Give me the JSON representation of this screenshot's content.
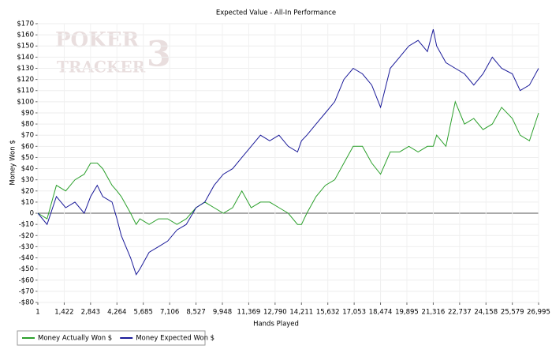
{
  "chart_data": {
    "type": "line",
    "title": "Expected Value - All-In Performance",
    "x_label": "Hands Played",
    "y_label": "Money Won $",
    "watermark": [
      "POKER",
      "TRACKER",
      "3"
    ],
    "grid": true,
    "legend": "bottom-left",
    "xlim": [
      1,
      26995
    ],
    "xticks": [
      1,
      {
        "value": 1422,
        "label": "1,422"
      },
      {
        "value": 2843,
        "label": "2,843"
      },
      {
        "value": 4264,
        "label": "4,264"
      },
      {
        "value": 5685,
        "label": "5,685"
      },
      {
        "value": 7106,
        "label": "7,106"
      },
      {
        "value": 8527,
        "label": "8,527"
      },
      {
        "value": 9948,
        "label": "9,948"
      },
      {
        "value": 11369,
        "label": "11,369"
      },
      {
        "value": 12790,
        "label": "12,790"
      },
      {
        "value": 14211,
        "label": "14,211"
      },
      {
        "value": 15632,
        "label": "15,632"
      },
      {
        "value": 17053,
        "label": "17,053"
      },
      {
        "value": 18474,
        "label": "18,474"
      },
      {
        "value": 19895,
        "label": "19,895"
      },
      {
        "value": 21316,
        "label": "21,316"
      },
      {
        "value": 22737,
        "label": "22,737"
      },
      {
        "value": 24158,
        "label": "24,158"
      },
      {
        "value": 25579,
        "label": "25,579"
      },
      {
        "value": 26995,
        "label": "26,995"
      }
    ],
    "ylim": [
      -80,
      170
    ],
    "yticks": [
      {
        "value": -80,
        "label": "-$80"
      },
      {
        "value": -70,
        "label": "-$70"
      },
      {
        "value": -60,
        "label": "-$60"
      },
      {
        "value": -50,
        "label": "-$50"
      },
      {
        "value": -40,
        "label": "-$40"
      },
      {
        "value": -30,
        "label": "-$30"
      },
      {
        "value": -20,
        "label": "-$20"
      },
      {
        "value": -10,
        "label": "-$10"
      },
      0,
      {
        "value": 10,
        "label": "$10"
      },
      {
        "value": 20,
        "label": "$20"
      },
      {
        "value": 30,
        "label": "$30"
      },
      {
        "value": 40,
        "label": "$40"
      },
      {
        "value": 50,
        "label": "$50"
      },
      {
        "value": 60,
        "label": "$60"
      },
      {
        "value": 70,
        "label": "$70"
      },
      {
        "value": 80,
        "label": "$80"
      },
      {
        "value": 90,
        "label": "$90"
      },
      {
        "value": 100,
        "label": "$100"
      },
      {
        "value": 110,
        "label": "$110"
      },
      {
        "value": 120,
        "label": "$120"
      },
      {
        "value": 130,
        "label": "$130"
      },
      {
        "value": 140,
        "label": "$140"
      },
      {
        "value": 150,
        "label": "$150"
      },
      {
        "value": 160,
        "label": "$160"
      },
      {
        "value": 170,
        "label": "$170"
      }
    ],
    "x": [
      1,
      500,
      1000,
      1500,
      2000,
      2500,
      2843,
      3200,
      3500,
      4000,
      4264,
      4500,
      5000,
      5300,
      5500,
      6000,
      6500,
      7000,
      7500,
      8000,
      8527,
      9000,
      9500,
      10000,
      10500,
      11000,
      11500,
      12000,
      12500,
      13000,
      13500,
      14000,
      14211,
      14500,
      15000,
      15500,
      16000,
      16500,
      17000,
      17500,
      18000,
      18474,
      19000,
      19500,
      20000,
      20500,
      21000,
      21316,
      21500,
      22000,
      22500,
      23000,
      23500,
      24000,
      24500,
      25000,
      25579,
      26000,
      26500,
      26995
    ],
    "series": [
      {
        "name": "Money Actually Won $",
        "color": "#2ca02c",
        "values": [
          0,
          -5,
          25,
          20,
          30,
          35,
          45,
          45,
          40,
          25,
          20,
          15,
          0,
          -10,
          -5,
          -10,
          -5,
          -5,
          -10,
          -5,
          5,
          10,
          5,
          0,
          5,
          20,
          5,
          10,
          10,
          5,
          0,
          -10,
          -10,
          0,
          15,
          25,
          30,
          45,
          60,
          60,
          45,
          35,
          55,
          55,
          60,
          55,
          60,
          60,
          70,
          60,
          100,
          80,
          85,
          75,
          80,
          95,
          85,
          70,
          65,
          90
        ]
      },
      {
        "name": "Money Expected Won $",
        "color": "#1a1a99",
        "values": [
          0,
          -10,
          15,
          5,
          10,
          0,
          15,
          25,
          15,
          10,
          -5,
          -20,
          -40,
          -55,
          -50,
          -35,
          -30,
          -25,
          -15,
          -10,
          5,
          10,
          25,
          35,
          40,
          50,
          60,
          70,
          65,
          70,
          60,
          55,
          65,
          70,
          80,
          90,
          100,
          120,
          130,
          125,
          115,
          95,
          130,
          140,
          150,
          155,
          145,
          165,
          150,
          135,
          130,
          125,
          115,
          125,
          140,
          130,
          125,
          110,
          115,
          130
        ]
      }
    ]
  }
}
